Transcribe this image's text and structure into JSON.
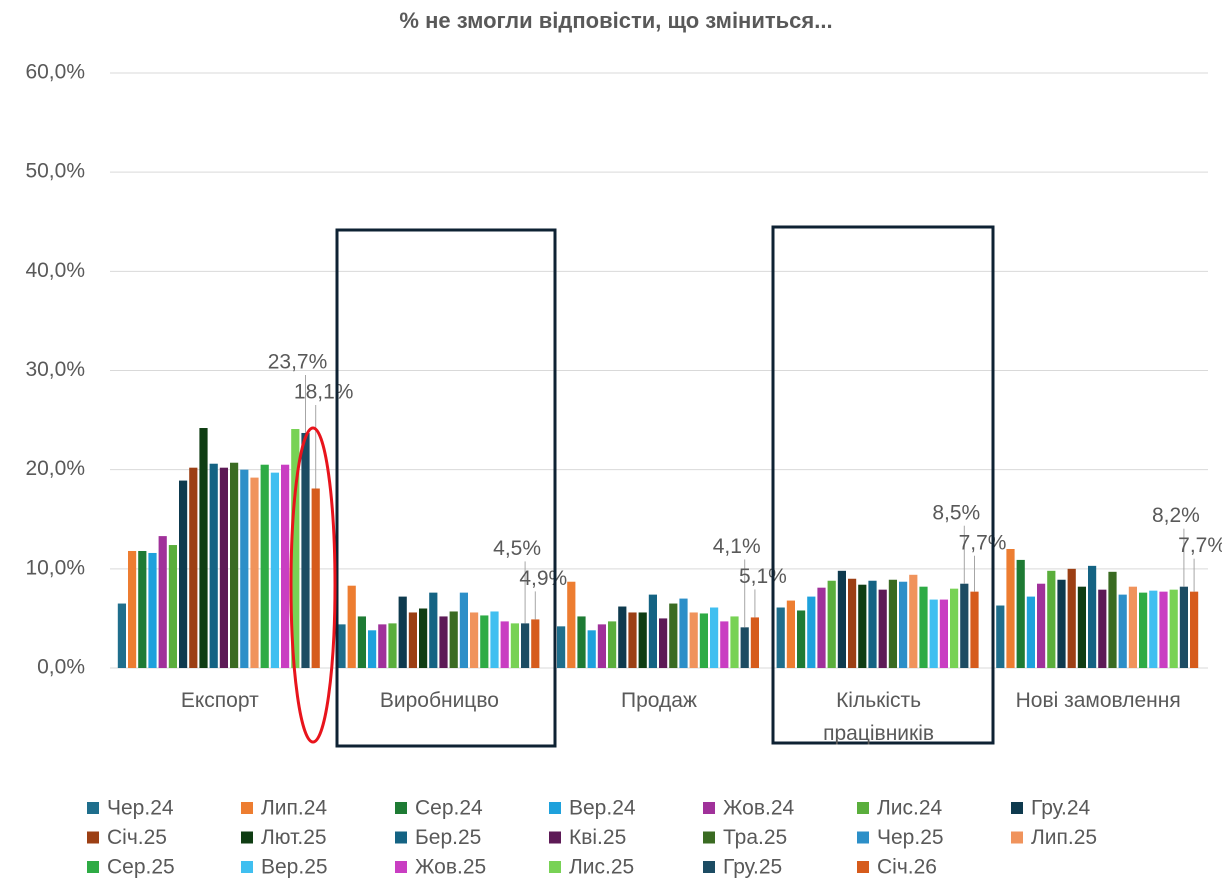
{
  "chart_data": {
    "type": "bar",
    "title": "% не змогли відповісти, що зміниться...",
    "categories": [
      "Експорт",
      "Виробницво",
      "Продаж",
      "Кількість працівників",
      "Нові замовлення"
    ],
    "ylim": [
      0,
      60
    ],
    "yticks": [
      {
        "value": 0,
        "label": "0,0%"
      },
      {
        "value": 10,
        "label": "10,0%"
      },
      {
        "value": 20,
        "label": "20,0%"
      },
      {
        "value": 30,
        "label": "30,0%"
      },
      {
        "value": 40,
        "label": "40,0%"
      },
      {
        "value": 50,
        "label": "50,0%"
      },
      {
        "value": 60,
        "label": "60,0%"
      }
    ],
    "grid": true,
    "legend": "bottom",
    "series": [
      {
        "name": "Чер.24",
        "color": "#1f6e8c",
        "values": [
          6.5,
          4.4,
          4.2,
          6.1,
          6.3
        ]
      },
      {
        "name": "Лип.24",
        "color": "#ed7d31",
        "values": [
          11.8,
          8.3,
          8.7,
          6.8,
          12.0
        ]
      },
      {
        "name": "Сер.24",
        "color": "#1e7b34",
        "values": [
          11.8,
          5.2,
          5.2,
          5.8,
          10.9
        ]
      },
      {
        "name": "Вер.24",
        "color": "#1ea1dc",
        "values": [
          11.6,
          3.8,
          3.8,
          7.2,
          7.2
        ]
      },
      {
        "name": "Жов.24",
        "color": "#a0319a",
        "values": [
          13.3,
          4.4,
          4.4,
          8.1,
          8.5
        ]
      },
      {
        "name": "Лис.24",
        "color": "#5aae3c",
        "values": [
          12.4,
          4.5,
          4.7,
          8.8,
          9.8
        ]
      },
      {
        "name": "Гру.24",
        "color": "#0e3a4e",
        "values": [
          18.9,
          7.2,
          6.2,
          9.8,
          8.9
        ]
      },
      {
        "name": "Січ.25",
        "color": "#9c3f14",
        "values": [
          20.2,
          5.6,
          5.6,
          9.0,
          10.0
        ]
      },
      {
        "name": "Лют.25",
        "color": "#0f3d13",
        "values": [
          24.2,
          6.0,
          5.6,
          8.4,
          8.2
        ]
      },
      {
        "name": "Бер.25",
        "color": "#146383",
        "values": [
          20.6,
          7.6,
          7.4,
          8.8,
          10.3
        ]
      },
      {
        "name": "Кві.25",
        "color": "#5d1a56",
        "values": [
          20.2,
          5.2,
          5.0,
          7.9,
          7.9
        ]
      },
      {
        "name": "Тра.25",
        "color": "#3a6b22",
        "values": [
          20.7,
          5.7,
          6.5,
          8.9,
          9.7
        ]
      },
      {
        "name": "Чер.25",
        "color": "#2c8fc8",
        "values": [
          20.0,
          7.6,
          7.0,
          8.7,
          7.4
        ]
      },
      {
        "name": "Лип.25",
        "color": "#f0935c",
        "values": [
          19.2,
          5.6,
          5.6,
          9.4,
          8.2
        ]
      },
      {
        "name": "Сер.25",
        "color": "#2eab45",
        "values": [
          20.5,
          5.3,
          5.5,
          8.2,
          7.6
        ]
      },
      {
        "name": "Вер.25",
        "color": "#40bff0",
        "values": [
          19.7,
          5.7,
          6.1,
          6.9,
          7.8
        ]
      },
      {
        "name": "Жов.25",
        "color": "#c93ec2",
        "values": [
          20.5,
          4.7,
          4.7,
          6.9,
          7.7
        ]
      },
      {
        "name": "Лис.25",
        "color": "#78d255",
        "values": [
          24.1,
          4.5,
          5.2,
          8.0,
          7.9
        ]
      },
      {
        "name": "Гру.25",
        "color": "#1c4c63",
        "values": [
          23.7,
          4.5,
          4.1,
          8.5,
          8.2
        ],
        "value_labels": [
          "23,7%",
          "4,5%",
          "4,1%",
          "8,5%",
          "8,2%"
        ]
      },
      {
        "name": "Січ.26",
        "color": "#d65b1c",
        "values": [
          18.1,
          4.9,
          5.1,
          7.7,
          7.7
        ],
        "value_labels": [
          "18,1%",
          "4,9%",
          "5,1%",
          "7,7%",
          "7,7%"
        ]
      }
    ]
  }
}
